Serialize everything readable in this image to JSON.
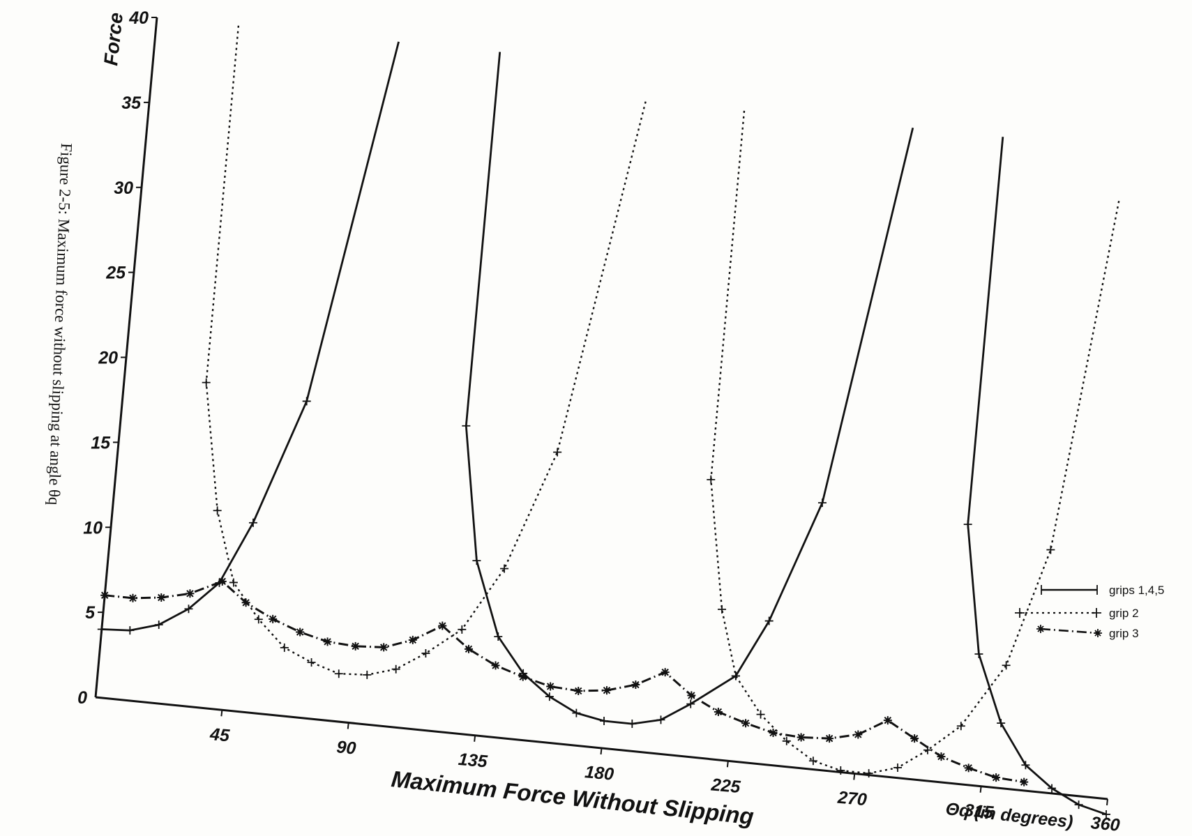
{
  "caption": "Figure 2-5:  Maximum force without slipping at angle θq",
  "chart_data": {
    "type": "line",
    "title": "Maximum Force Without Slipping",
    "xlabel": "Θq (in degrees)",
    "ylabel": "Force",
    "xlim": [
      0,
      360
    ],
    "ylim": [
      0,
      40
    ],
    "x_ticks": [
      "45",
      "90",
      "135",
      "180",
      "225",
      "270",
      "315",
      "360"
    ],
    "y_ticks": [
      "0",
      "5",
      "10",
      "15",
      "20",
      "25",
      "30",
      "35",
      "40"
    ],
    "legend_position": "right",
    "series": [
      {
        "name": "grips 1,4,5",
        "style": "solid",
        "marker": "+",
        "segments": [
          [
            [
              0,
              4
            ],
            [
              10,
              4.1
            ],
            [
              20,
              4.6
            ],
            [
              30,
              5.7
            ],
            [
              40,
              7.4
            ],
            [
              50,
              11.1
            ],
            [
              65,
              18.5
            ],
            [
              86,
              40
            ]
          ],
          [
            [
              122,
              40
            ],
            [
              122,
              18
            ],
            [
              130,
              10.2
            ],
            [
              140,
              5.9
            ],
            [
              150,
              3.9
            ],
            [
              160,
              2.7
            ],
            [
              170,
              1.9
            ],
            [
              180,
              1.6
            ],
            [
              190,
              1.6
            ],
            [
              200,
              2
            ],
            [
              210,
              3.1
            ],
            [
              225,
              5
            ]
          ],
          [
            [
              225,
              5
            ],
            [
              235,
              8.4
            ],
            [
              250,
              15.6
            ],
            [
              270,
              38
            ]
          ],
          [
            [
              302,
              38
            ],
            [
              302,
              15.2
            ],
            [
              310,
              7.7
            ],
            [
              320,
              3.8
            ],
            [
              330,
              1.5
            ],
            [
              340,
              0.3
            ],
            [
              350,
              -0.5
            ],
            [
              360,
              -0.9
            ]
          ]
        ]
      },
      {
        "name": "grip 2",
        "style": "dotted",
        "marker": "+",
        "segments": [
          [
            [
              29,
              40
            ],
            [
              29,
              19
            ],
            [
              37,
              11.6
            ],
            [
              45,
              7.5
            ],
            [
              55,
              5.5
            ],
            [
              65,
              4
            ],
            [
              75,
              3.3
            ],
            [
              85,
              2.8
            ],
            [
              95,
              2.9
            ],
            [
              105,
              3.4
            ],
            [
              115,
              4.5
            ],
            [
              127,
              6.1
            ],
            [
              140,
              9.9
            ],
            [
              155,
              17
            ],
            [
              175,
              38
            ]
          ],
          [
            [
              210,
              38
            ],
            [
              210,
              16.3
            ],
            [
              218,
              8.8
            ],
            [
              225,
              5
            ],
            [
              235,
              2.9
            ],
            [
              245,
              1.5
            ],
            [
              255,
              0.5
            ],
            [
              265,
              0.1
            ],
            [
              275,
              0.1
            ],
            [
              285,
              0.6
            ],
            [
              295,
              1.8
            ],
            [
              306,
              3.4
            ],
            [
              320,
              7.2
            ],
            [
              332,
              14.2
            ],
            [
              345,
              35
            ]
          ]
        ]
      },
      {
        "name": "grip 3",
        "style": "dashdot",
        "marker": "*",
        "segments": [
          [
            [
              0,
              6
            ],
            [
              10,
              6
            ],
            [
              20,
              6.2
            ],
            [
              30,
              6.6
            ],
            [
              41,
              7.5
            ],
            [
              50,
              6.4
            ],
            [
              60,
              5.6
            ],
            [
              70,
              5
            ],
            [
              80,
              4.6
            ],
            [
              90,
              4.5
            ],
            [
              100,
              4.6
            ],
            [
              110,
              5.2
            ],
            [
              120,
              6.2
            ],
            [
              130,
              5
            ],
            [
              140,
              4.2
            ],
            [
              150,
              3.7
            ],
            [
              160,
              3.3
            ],
            [
              170,
              3.2
            ],
            [
              180,
              3.4
            ],
            [
              190,
              3.9
            ],
            [
              200,
              4.8
            ],
            [
              210,
              3.6
            ],
            [
              220,
              2.8
            ],
            [
              230,
              2.3
            ],
            [
              240,
              1.9
            ],
            [
              250,
              1.8
            ],
            [
              260,
              1.9
            ],
            [
              270,
              2.3
            ],
            [
              280,
              3.3
            ],
            [
              290,
              2.4
            ],
            [
              300,
              1.5
            ],
            [
              310,
              1
            ],
            [
              320,
              0.6
            ],
            [
              330,
              0.5
            ]
          ]
        ]
      }
    ]
  }
}
